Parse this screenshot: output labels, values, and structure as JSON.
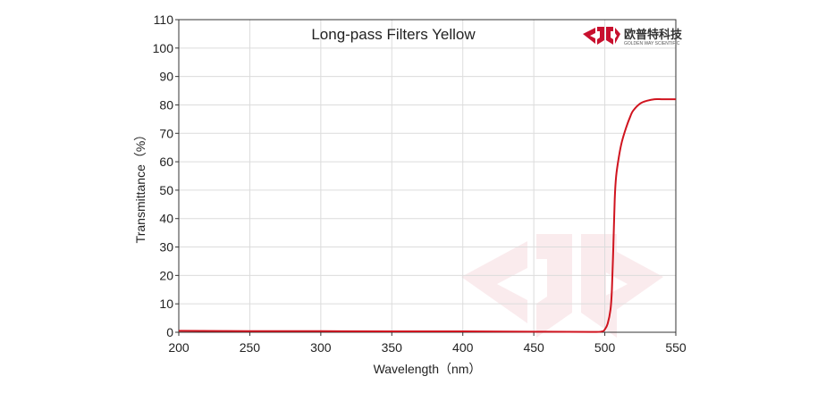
{
  "logo": {
    "cn_text": "欧普特科技",
    "en_text": "GOLDEN WAY SCIENTIFIC"
  },
  "chart_data": {
    "type": "line",
    "title": "Long-pass Filters Yellow",
    "xlabel": "Wavelength（nm）",
    "ylabel": "Transmittance（%）",
    "xlim": [
      200,
      550
    ],
    "ylim": [
      0,
      110
    ],
    "xticks": [
      200,
      250,
      300,
      350,
      400,
      450,
      500,
      550
    ],
    "yticks": [
      0,
      10,
      20,
      30,
      40,
      50,
      60,
      70,
      80,
      90,
      100,
      110
    ],
    "grid": true,
    "series": [
      {
        "color": "#d0141f",
        "x": [
          200,
          250,
          300,
          350,
          400,
          450,
          490,
          498,
          500,
          502,
          504,
          505,
          506,
          507,
          508,
          510,
          512,
          515,
          518,
          520,
          525,
          530,
          535,
          540,
          545,
          550
        ],
        "y": [
          0.5,
          0.4,
          0.4,
          0.3,
          0.3,
          0.2,
          0.1,
          0.3,
          1,
          3,
          8,
          15,
          30,
          47,
          55,
          62,
          67,
          72,
          76,
          78,
          80.5,
          81.5,
          82,
          82,
          82,
          82
        ]
      }
    ]
  }
}
